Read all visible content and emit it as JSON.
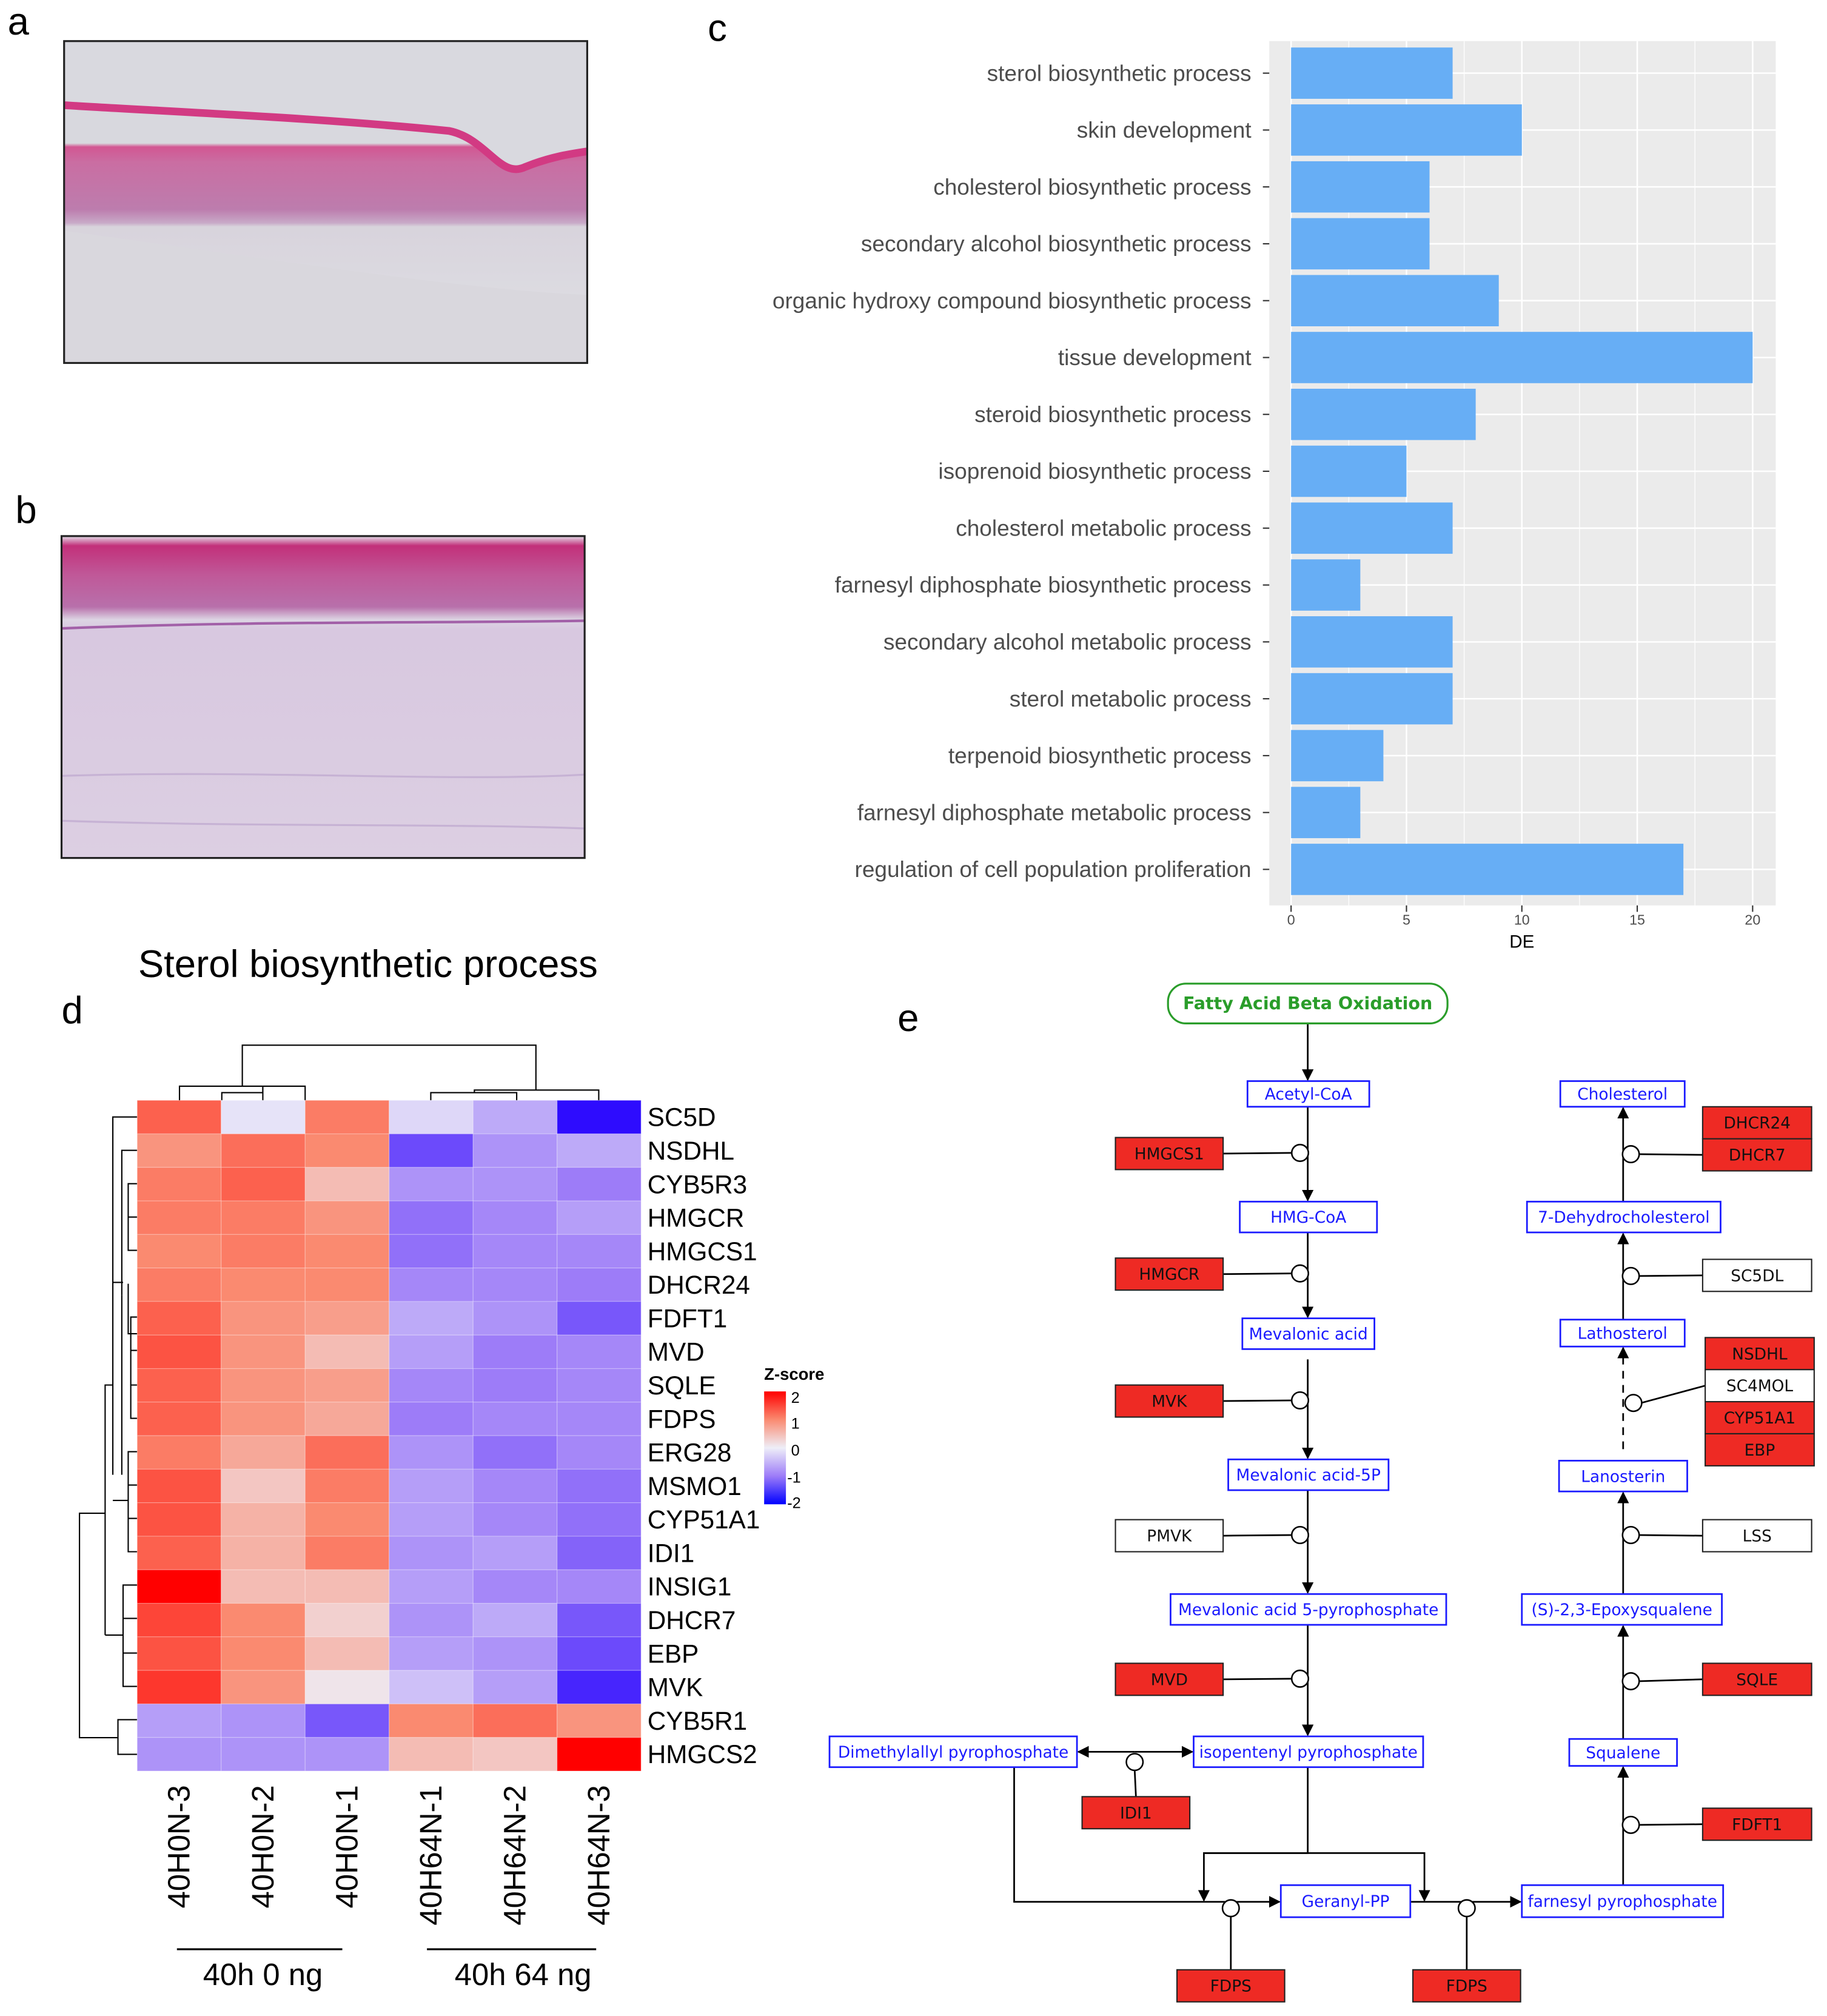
{
  "panels": {
    "a": "a",
    "b": "b",
    "c": "c",
    "d": "d",
    "e": "e"
  },
  "chart_data": [
    {
      "type": "bar",
      "orientation": "horizontal",
      "title": "",
      "xlabel": "DE",
      "ylabel": "",
      "xlim": [
        0,
        20.5
      ],
      "xticks": [
        0,
        5,
        10,
        15,
        20
      ],
      "grid": true,
      "bar_color": "#67aef5",
      "categories": [
        "sterol biosynthetic process",
        "skin development",
        "cholesterol biosynthetic process",
        "secondary alcohol biosynthetic process",
        "organic hydroxy compound biosynthetic process",
        "tissue development",
        "steroid biosynthetic process",
        "isoprenoid biosynthetic process",
        "cholesterol metabolic process",
        "farnesyl diphosphate biosynthetic process",
        "secondary alcohol metabolic process",
        "sterol metabolic process",
        "terpenoid biosynthetic process",
        "farnesyl diphosphate metabolic process",
        "regulation of cell population proliferation"
      ],
      "values": [
        7,
        10,
        6,
        6,
        9,
        20,
        8,
        5,
        7,
        3,
        7,
        7,
        4,
        3,
        17
      ]
    },
    {
      "type": "heatmap",
      "title": "Sterol biosynthetic process",
      "legend_title": "Z-score",
      "legend_ticks": [
        "2",
        "1",
        "0",
        "-1",
        "-2"
      ],
      "zlim": [
        -2,
        2
      ],
      "colors": {
        "low": "#2200ff",
        "mid": "#eeeef8",
        "high": "#ff0000"
      },
      "columns": [
        "40H0N-3",
        "40H0N-2",
        "40H0N-1",
        "40H64N-1",
        "40H64N-2",
        "40H64N-3"
      ],
      "groups": [
        {
          "label": "40h 0 ng",
          "n": 3
        },
        {
          "label": "40h 64 ng",
          "n": 3
        }
      ],
      "rows": [
        "SC5D",
        "NSDHL",
        "CYB5R3",
        "HMGCR",
        "HMGCS1",
        "DHCR24",
        "FDFT1",
        "MVD",
        "SQLE",
        "FDPS",
        "ERG28",
        "MSMO1",
        "CYP51A1",
        "IDI1",
        "INSIG1",
        "DHCR7",
        "EBP",
        "MVK",
        "CYB5R1",
        "HMGCS2"
      ],
      "values": [
        [
          1.3,
          -0.1,
          1.1,
          -0.2,
          -0.6,
          -1.9
        ],
        [
          0.9,
          1.2,
          1.0,
          -1.4,
          -0.8,
          -0.6
        ],
        [
          1.1,
          1.3,
          0.5,
          -0.8,
          -0.8,
          -1.0
        ],
        [
          1.1,
          1.1,
          0.9,
          -1.1,
          -0.9,
          -0.7
        ],
        [
          1.0,
          1.1,
          1.0,
          -1.1,
          -0.9,
          -0.9
        ],
        [
          1.1,
          1.0,
          1.0,
          -0.9,
          -0.9,
          -1.0
        ],
        [
          1.3,
          0.9,
          0.8,
          -0.6,
          -0.8,
          -1.3
        ],
        [
          1.4,
          0.9,
          0.5,
          -0.7,
          -1.0,
          -0.9
        ],
        [
          1.3,
          0.9,
          0.8,
          -0.9,
          -1.0,
          -0.9
        ],
        [
          1.3,
          0.9,
          0.7,
          -1.0,
          -0.9,
          -0.9
        ],
        [
          1.1,
          0.7,
          1.2,
          -0.8,
          -1.1,
          -0.9
        ],
        [
          1.4,
          0.4,
          1.1,
          -0.7,
          -0.9,
          -1.1
        ],
        [
          1.4,
          0.6,
          1.0,
          -0.7,
          -0.9,
          -1.1
        ],
        [
          1.3,
          0.6,
          1.1,
          -0.8,
          -0.7,
          -1.2
        ],
        [
          2.0,
          0.5,
          0.5,
          -0.7,
          -0.9,
          -0.9
        ],
        [
          1.5,
          1.0,
          0.3,
          -0.8,
          -0.6,
          -1.3
        ],
        [
          1.4,
          1.0,
          0.5,
          -0.7,
          -0.8,
          -1.4
        ],
        [
          1.6,
          0.9,
          0.1,
          -0.4,
          -0.7,
          -1.7
        ],
        [
          -0.7,
          -0.8,
          -1.3,
          1.0,
          1.2,
          0.9
        ],
        [
          -0.8,
          -0.8,
          -0.8,
          0.5,
          0.4,
          2.0
        ]
      ]
    }
  ],
  "pathway": {
    "start": "Fatty Acid Beta Oxidation",
    "colors": {
      "start": "#2a9d2a",
      "metabolite": "#1a1aff",
      "gene_up": "#ee2a24",
      "gene_none": "#ffffff"
    },
    "metabolites": {
      "acetyl": "Acetyl-CoA",
      "hmgcoa": "HMG-CoA",
      "meva": "Mevalonic acid",
      "meva5p": "Mevalonic acid-5P",
      "mevapp": "Mevalonic acid 5-pyrophosphate",
      "ipp": "isopentenyl pyrophosphate",
      "dmapp": "Dimethylallyl pyrophosphate",
      "gpp": "Geranyl-PP",
      "fpp": "farnesyl pyrophosphate",
      "squalene": "Squalene",
      "epox": "(S)-2,3-Epoxysqualene",
      "lanost": "Lanosterin",
      "lathost": "Lathosterol",
      "dhc7": "7-Dehydrocholesterol",
      "chol": "Cholesterol"
    },
    "genes": [
      {
        "id": "hmgcs1",
        "label": "HMGCS1",
        "up": true
      },
      {
        "id": "hmgcr",
        "label": "HMGCR",
        "up": true
      },
      {
        "id": "mvk",
        "label": "MVK",
        "up": true
      },
      {
        "id": "pmvk",
        "label": "PMVK",
        "up": false
      },
      {
        "id": "mvd",
        "label": "MVD",
        "up": true
      },
      {
        "id": "idi1",
        "label": "IDI1",
        "up": true
      },
      {
        "id": "fdps1",
        "label": "FDPS",
        "up": true
      },
      {
        "id": "fdps2",
        "label": "FDPS",
        "up": true
      },
      {
        "id": "dhcr24",
        "label": "DHCR24",
        "up": true
      },
      {
        "id": "dhcr7",
        "label": "DHCR7",
        "up": true
      },
      {
        "id": "sc5dl",
        "label": "SC5DL",
        "up": false
      },
      {
        "id": "nsdhl",
        "label": "NSDHL",
        "up": true
      },
      {
        "id": "sc4mol",
        "label": "SC4MOL",
        "up": false
      },
      {
        "id": "cyp51a1",
        "label": "CYP51A1",
        "up": true
      },
      {
        "id": "ebp",
        "label": "EBP",
        "up": true
      },
      {
        "id": "lss",
        "label": "LSS",
        "up": false
      },
      {
        "id": "sqle",
        "label": "SQLE",
        "up": true
      },
      {
        "id": "fdft1",
        "label": "FDFT1",
        "up": true
      }
    ]
  }
}
